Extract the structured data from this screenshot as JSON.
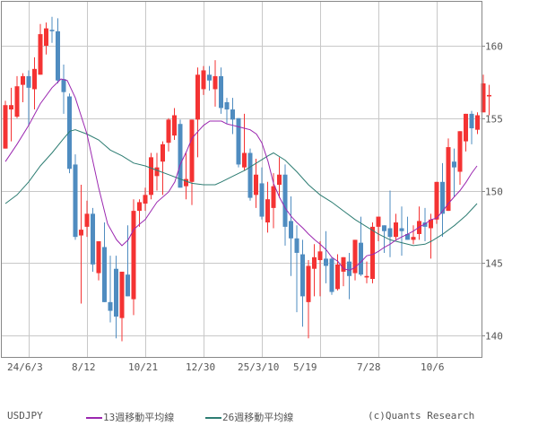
{
  "footer": {
    "symbol": "USDJPY",
    "legend": [
      {
        "label": "13週移動平均線",
        "color": "#9b27b0"
      },
      {
        "label": "26週移動平均線",
        "color": "#2e7d73"
      }
    ],
    "copyright": "(c)Quants Research"
  },
  "colors": {
    "up": "#f43333",
    "down": "#4f8cc0",
    "ma13": "#9b27b0",
    "ma26": "#2e7d73",
    "grid": "#c8c8c8",
    "frame": "#888888"
  },
  "chart_data": {
    "type": "candlestick",
    "title": "USDJPY",
    "xlabel": "",
    "ylabel": "",
    "ylim": [
      138.5,
      163
    ],
    "yticks": [
      140,
      145,
      150,
      155,
      160
    ],
    "xtick_labels": [
      "24/6/3",
      "8/12",
      "10/21",
      "12/30",
      "25/3/10",
      "5/19",
      "7/28",
      "10/6"
    ],
    "grid": true,
    "legend_position": "bottom",
    "candles": [
      {
        "o": 152.9,
        "h": 156.2,
        "l": 152.9,
        "c": 155.9
      },
      {
        "o": 155.6,
        "h": 157.1,
        "l": 153.4,
        "c": 155.9
      },
      {
        "o": 155.1,
        "h": 157.9,
        "l": 155.0,
        "c": 157.2
      },
      {
        "o": 157.3,
        "h": 158.1,
        "l": 156.1,
        "c": 157.9
      },
      {
        "o": 157.9,
        "h": 158.3,
        "l": 154.5,
        "c": 157.1
      },
      {
        "o": 157.0,
        "h": 159.2,
        "l": 155.6,
        "c": 158.4
      },
      {
        "o": 158.0,
        "h": 161.5,
        "l": 158.0,
        "c": 160.8
      },
      {
        "o": 160.0,
        "h": 161.6,
        "l": 159.4,
        "c": 161.2
      },
      {
        "o": 161.1,
        "h": 162.0,
        "l": 160.2,
        "c": 161.0
      },
      {
        "o": 161.0,
        "h": 161.9,
        "l": 157.4,
        "c": 157.6
      },
      {
        "o": 157.7,
        "h": 158.7,
        "l": 155.3,
        "c": 156.8
      },
      {
        "o": 156.5,
        "h": 156.7,
        "l": 151.2,
        "c": 151.5
      },
      {
        "o": 151.8,
        "h": 152.5,
        "l": 146.6,
        "c": 146.8
      },
      {
        "o": 146.9,
        "h": 150.4,
        "l": 142.2,
        "c": 147.3
      },
      {
        "o": 147.5,
        "h": 149.3,
        "l": 146.8,
        "c": 148.4
      },
      {
        "o": 148.4,
        "h": 148.8,
        "l": 144.4,
        "c": 144.9
      },
      {
        "o": 144.3,
        "h": 146.5,
        "l": 143.8,
        "c": 146.5
      },
      {
        "o": 146.1,
        "h": 147.8,
        "l": 142.3,
        "c": 142.3
      },
      {
        "o": 142.3,
        "h": 145.5,
        "l": 140.9,
        "c": 141.7
      },
      {
        "o": 144.6,
        "h": 145.5,
        "l": 139.8,
        "c": 141.3
      },
      {
        "o": 141.2,
        "h": 143.2,
        "l": 139.6,
        "c": 144.4
      },
      {
        "o": 144.2,
        "h": 147.6,
        "l": 144.2,
        "c": 142.7
      },
      {
        "o": 142.5,
        "h": 149.4,
        "l": 141.4,
        "c": 148.6
      },
      {
        "o": 148.6,
        "h": 149.4,
        "l": 147.5,
        "c": 149.2
      },
      {
        "o": 149.1,
        "h": 150.2,
        "l": 148.6,
        "c": 149.7
      },
      {
        "o": 149.7,
        "h": 152.6,
        "l": 149.4,
        "c": 152.3
      },
      {
        "o": 151.0,
        "h": 152.6,
        "l": 150.0,
        "c": 151.6
      },
      {
        "o": 152.0,
        "h": 153.4,
        "l": 149.7,
        "c": 153.2
      },
      {
        "o": 153.3,
        "h": 155.0,
        "l": 152.7,
        "c": 154.9
      },
      {
        "o": 153.8,
        "h": 155.7,
        "l": 153.5,
        "c": 155.2
      },
      {
        "o": 154.6,
        "h": 154.9,
        "l": 150.6,
        "c": 150.2
      },
      {
        "o": 150.3,
        "h": 152.6,
        "l": 149.4,
        "c": 150.8
      },
      {
        "o": 150.6,
        "h": 153.4,
        "l": 149.0,
        "c": 154.9
      },
      {
        "o": 154.9,
        "h": 158.5,
        "l": 152.3,
        "c": 158.0
      },
      {
        "o": 157.0,
        "h": 158.6,
        "l": 156.6,
        "c": 158.3
      },
      {
        "o": 158.0,
        "h": 158.6,
        "l": 156.9,
        "c": 157.6
      },
      {
        "o": 157.0,
        "h": 159.0,
        "l": 155.8,
        "c": 157.9
      },
      {
        "o": 157.9,
        "h": 158.5,
        "l": 155.3,
        "c": 155.7
      },
      {
        "o": 156.1,
        "h": 156.4,
        "l": 154.6,
        "c": 155.6
      },
      {
        "o": 155.6,
        "h": 156.4,
        "l": 153.9,
        "c": 154.9
      },
      {
        "o": 155.0,
        "h": 155.0,
        "l": 151.6,
        "c": 151.8
      },
      {
        "o": 151.6,
        "h": 155.3,
        "l": 151.4,
        "c": 152.6
      },
      {
        "o": 152.6,
        "h": 152.9,
        "l": 149.3,
        "c": 149.5
      },
      {
        "o": 149.7,
        "h": 152.2,
        "l": 148.8,
        "c": 151.1
      },
      {
        "o": 150.5,
        "h": 151.6,
        "l": 148.0,
        "c": 148.2
      },
      {
        "o": 147.8,
        "h": 150.6,
        "l": 147.1,
        "c": 149.4
      },
      {
        "o": 148.8,
        "h": 151.2,
        "l": 147.4,
        "c": 150.3
      },
      {
        "o": 150.4,
        "h": 152.3,
        "l": 149.5,
        "c": 151.1
      },
      {
        "o": 151.1,
        "h": 151.8,
        "l": 146.2,
        "c": 147.5
      },
      {
        "o": 147.9,
        "h": 149.6,
        "l": 144.1,
        "c": 146.7
      },
      {
        "o": 146.7,
        "h": 147.6,
        "l": 141.6,
        "c": 145.7
      },
      {
        "o": 145.6,
        "h": 146.6,
        "l": 140.6,
        "c": 142.7
      },
      {
        "o": 142.3,
        "h": 145.2,
        "l": 139.8,
        "c": 144.8
      },
      {
        "o": 144.6,
        "h": 146.3,
        "l": 142.7,
        "c": 145.4
      },
      {
        "o": 145.2,
        "h": 146.5,
        "l": 142.7,
        "c": 145.8
      },
      {
        "o": 145.3,
        "h": 147.2,
        "l": 143.6,
        "c": 144.8
      },
      {
        "o": 145.3,
        "h": 145.4,
        "l": 142.8,
        "c": 143.0
      },
      {
        "o": 143.2,
        "h": 145.6,
        "l": 143.1,
        "c": 144.9
      },
      {
        "o": 144.4,
        "h": 145.4,
        "l": 143.4,
        "c": 145.4
      },
      {
        "o": 145.1,
        "h": 145.7,
        "l": 142.5,
        "c": 144.1
      },
      {
        "o": 144.3,
        "h": 146.6,
        "l": 143.8,
        "c": 146.6
      },
      {
        "o": 146.4,
        "h": 148.2,
        "l": 144.1,
        "c": 144.2
      },
      {
        "o": 144.0,
        "h": 145.1,
        "l": 143.6,
        "c": 144.1
      },
      {
        "o": 143.9,
        "h": 147.8,
        "l": 143.6,
        "c": 147.5
      },
      {
        "o": 147.5,
        "h": 148.2,
        "l": 146.5,
        "c": 148.2
      },
      {
        "o": 147.6,
        "h": 147.2,
        "l": 145.7,
        "c": 147.2
      },
      {
        "o": 147.4,
        "h": 150.0,
        "l": 145.4,
        "c": 146.8
      },
      {
        "o": 146.8,
        "h": 148.4,
        "l": 146.6,
        "c": 147.8
      },
      {
        "o": 147.4,
        "h": 148.9,
        "l": 145.5,
        "c": 147.2
      },
      {
        "o": 147.0,
        "h": 148.2,
        "l": 146.7,
        "c": 146.6
      },
      {
        "o": 146.6,
        "h": 147.6,
        "l": 146.3,
        "c": 146.8
      },
      {
        "o": 147.0,
        "h": 148.9,
        "l": 146.6,
        "c": 147.9
      },
      {
        "o": 147.8,
        "h": 148.8,
        "l": 146.5,
        "c": 147.5
      },
      {
        "o": 147.4,
        "h": 148.4,
        "l": 145.3,
        "c": 148.0
      },
      {
        "o": 148.0,
        "h": 150.0,
        "l": 147.7,
        "c": 150.6
      },
      {
        "o": 150.6,
        "h": 151.9,
        "l": 146.8,
        "c": 148.4
      },
      {
        "o": 148.6,
        "h": 153.6,
        "l": 148.6,
        "c": 153.0
      },
      {
        "o": 152.0,
        "h": 152.9,
        "l": 149.6,
        "c": 151.6
      },
      {
        "o": 151.3,
        "h": 154.0,
        "l": 150.4,
        "c": 154.1
      },
      {
        "o": 153.4,
        "h": 154.9,
        "l": 152.7,
        "c": 155.3
      },
      {
        "o": 155.3,
        "h": 155.5,
        "l": 153.2,
        "c": 154.3
      },
      {
        "o": 154.2,
        "h": 155.4,
        "l": 153.9,
        "c": 155.2
      },
      {
        "o": 155.4,
        "h": 158.0,
        "l": 155.4,
        "c": 157.4
      },
      {
        "o": 156.5,
        "h": 157.3,
        "l": 155.2,
        "c": 156.6
      }
    ],
    "ma13": [
      [
        6,
        152.0
      ],
      [
        19,
        153.2
      ],
      [
        32,
        154.5
      ],
      [
        45,
        156.0
      ],
      [
        58,
        157.1
      ],
      [
        68,
        157.7
      ],
      [
        75,
        157.6
      ],
      [
        84,
        156.4
      ],
      [
        97,
        153.9
      ],
      [
        110,
        150.2
      ],
      [
        120,
        147.7
      ],
      [
        130,
        146.6
      ],
      [
        136,
        146.2
      ],
      [
        143,
        146.6
      ],
      [
        149,
        147.3
      ],
      [
        156,
        147.7
      ],
      [
        162,
        148.0
      ],
      [
        175,
        149.2
      ],
      [
        188,
        149.9
      ],
      [
        195,
        150.6
      ],
      [
        201,
        151.8
      ],
      [
        208,
        152.7
      ],
      [
        214,
        153.6
      ],
      [
        221,
        154.1
      ],
      [
        227,
        154.5
      ],
      [
        234,
        154.8
      ],
      [
        240,
        154.8
      ],
      [
        247,
        154.8
      ],
      [
        253,
        154.6
      ],
      [
        260,
        154.5
      ],
      [
        266,
        154.4
      ],
      [
        273,
        154.3
      ],
      [
        279,
        154.2
      ],
      [
        286,
        153.9
      ],
      [
        292,
        153.3
      ],
      [
        299,
        152.0
      ],
      [
        305,
        150.5
      ],
      [
        312,
        149.5
      ],
      [
        318,
        148.8
      ],
      [
        325,
        148.2
      ],
      [
        331,
        147.8
      ],
      [
        338,
        147.4
      ],
      [
        344,
        147.0
      ],
      [
        351,
        146.6
      ],
      [
        357,
        146.3
      ],
      [
        364,
        145.9
      ],
      [
        370,
        145.4
      ],
      [
        377,
        145.1
      ],
      [
        383,
        144.6
      ],
      [
        390,
        144.5
      ],
      [
        396,
        144.7
      ],
      [
        403,
        145.1
      ],
      [
        409,
        145.5
      ],
      [
        416,
        145.6
      ],
      [
        422,
        145.8
      ],
      [
        429,
        146.1
      ],
      [
        435,
        146.3
      ],
      [
        442,
        146.6
      ],
      [
        448,
        146.8
      ],
      [
        455,
        147.0
      ],
      [
        461,
        147.2
      ],
      [
        468,
        147.5
      ],
      [
        474,
        147.7
      ],
      [
        481,
        148.0
      ],
      [
        487,
        148.1
      ],
      [
        494,
        148.6
      ],
      [
        500,
        149.1
      ],
      [
        507,
        149.6
      ],
      [
        513,
        150.0
      ],
      [
        520,
        150.6
      ],
      [
        526,
        151.2
      ],
      [
        532,
        151.7
      ]
    ],
    "ma26": [
      [
        6,
        149.1
      ],
      [
        19,
        149.7
      ],
      [
        32,
        150.6
      ],
      [
        45,
        151.7
      ],
      [
        58,
        152.6
      ],
      [
        71,
        153.6
      ],
      [
        78,
        154.1
      ],
      [
        84,
        154.2
      ],
      [
        97,
        153.9
      ],
      [
        110,
        153.5
      ],
      [
        123,
        152.8
      ],
      [
        136,
        152.4
      ],
      [
        149,
        151.9
      ],
      [
        162,
        151.7
      ],
      [
        175,
        151.4
      ],
      [
        188,
        151.1
      ],
      [
        201,
        150.8
      ],
      [
        214,
        150.5
      ],
      [
        227,
        150.4
      ],
      [
        240,
        150.4
      ],
      [
        247,
        150.6
      ],
      [
        260,
        151.0
      ],
      [
        273,
        151.4
      ],
      [
        286,
        151.9
      ],
      [
        299,
        152.4
      ],
      [
        305,
        152.6
      ],
      [
        318,
        152.1
      ],
      [
        331,
        151.3
      ],
      [
        344,
        150.4
      ],
      [
        357,
        149.7
      ],
      [
        370,
        149.2
      ],
      [
        383,
        148.6
      ],
      [
        396,
        148.0
      ],
      [
        409,
        147.5
      ],
      [
        422,
        147.0
      ],
      [
        435,
        146.6
      ],
      [
        448,
        146.4
      ],
      [
        461,
        146.2
      ],
      [
        474,
        146.3
      ],
      [
        481,
        146.5
      ],
      [
        494,
        147.0
      ],
      [
        507,
        147.6
      ],
      [
        520,
        148.3
      ],
      [
        532,
        149.1
      ]
    ]
  }
}
